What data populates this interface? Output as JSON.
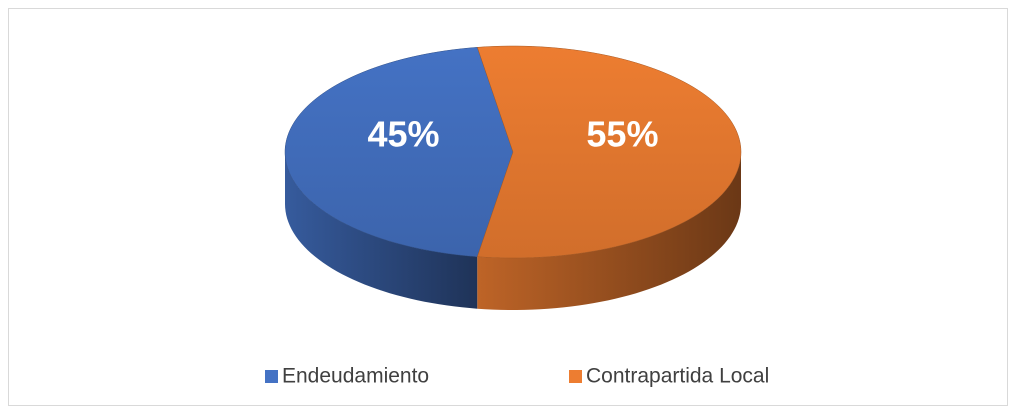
{
  "chart_data": {
    "type": "pie",
    "categories": [
      "Endeudamiento",
      "Contrapartida Local"
    ],
    "values": [
      45,
      55
    ],
    "value_labels": [
      "45%",
      "55%"
    ],
    "colors": [
      "#4472c4",
      "#ed7d31"
    ],
    "legend": "bottom"
  }
}
